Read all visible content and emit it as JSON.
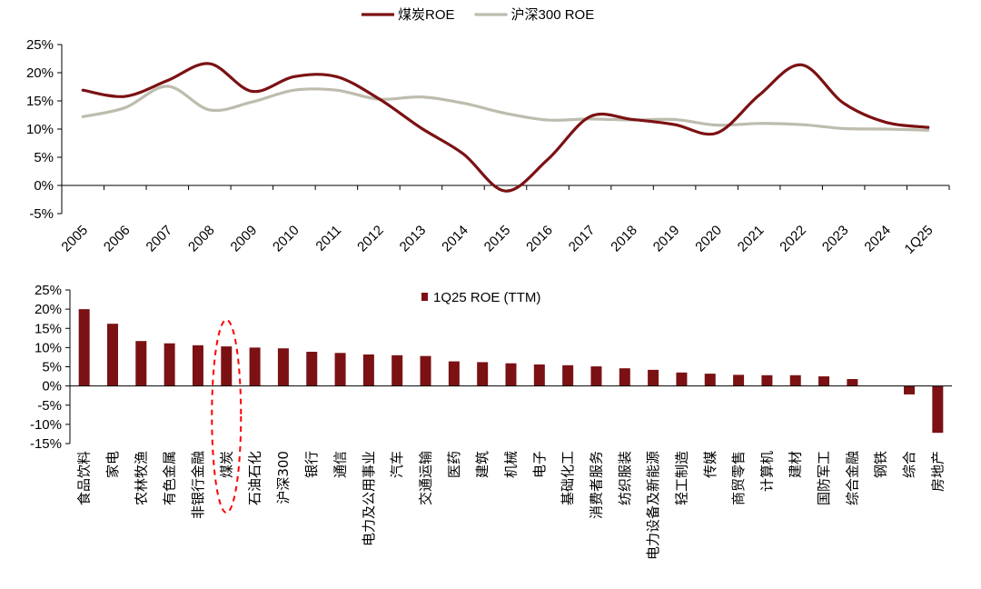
{
  "chart_data": [
    {
      "type": "line",
      "x": [
        "2005",
        "2006",
        "2007",
        "2008",
        "2009",
        "2010",
        "2011",
        "2012",
        "2013",
        "2014",
        "2015",
        "2016",
        "2017",
        "2018",
        "2019",
        "2020",
        "2021",
        "2022",
        "2023",
        "2024",
        "1Q25"
      ],
      "series": [
        {
          "name": "煤炭ROE",
          "color": "#7b1113",
          "values": [
            16.9,
            15.8,
            18.6,
            21.6,
            16.7,
            19.3,
            19.3,
            15.4,
            10.2,
            5.6,
            -1.0,
            4.6,
            12.2,
            11.7,
            10.8,
            9.3,
            16.0,
            21.4,
            14.6,
            11.2,
            10.3
          ]
        },
        {
          "name": "沪深300 ROE",
          "color": "#bdbcae",
          "values": [
            12.2,
            13.8,
            17.6,
            13.4,
            14.8,
            16.9,
            16.9,
            15.3,
            15.7,
            14.6,
            12.8,
            11.6,
            11.8,
            11.6,
            11.7,
            10.7,
            11.0,
            10.8,
            10.1,
            10.0,
            9.8
          ]
        }
      ],
      "yticks": [
        "25%",
        "20%",
        "15%",
        "10%",
        "5%",
        "0%",
        "-5%"
      ],
      "ylim": [
        -5,
        25
      ],
      "grid": false,
      "legend": "top"
    },
    {
      "type": "bar",
      "categories": [
        "食品饮料",
        "家电",
        "农林牧渔",
        "有色金属",
        "非银行金融",
        "煤炭",
        "石油石化",
        "沪深300",
        "银行",
        "通信",
        "电力及公用事业",
        "汽车",
        "交通运输",
        "医药",
        "建筑",
        "机械",
        "电子",
        "基础化工",
        "消费者服务",
        "纺织服装",
        "电力设备及新能源",
        "轻工制造",
        "传媒",
        "商贸零售",
        "计算机",
        "建材",
        "国防军工",
        "综合金融",
        "钢铁",
        "综合",
        "房地产"
      ],
      "series": [
        {
          "name": "1Q25 ROE (TTM)",
          "color": "#7b1113",
          "values": [
            20.0,
            16.2,
            11.7,
            11.1,
            10.6,
            10.3,
            10.0,
            9.8,
            8.9,
            8.6,
            8.2,
            8.0,
            7.8,
            6.4,
            6.2,
            5.9,
            5.6,
            5.4,
            5.1,
            4.6,
            4.2,
            3.5,
            3.2,
            2.9,
            2.8,
            2.8,
            2.5,
            1.8,
            0.0,
            -2.2,
            -12.2
          ]
        }
      ],
      "yticks": [
        "25%",
        "20%",
        "15%",
        "10%",
        "5%",
        "0%",
        "-5%",
        "-10%",
        "-15%"
      ],
      "ylim": [
        -15,
        25
      ],
      "grid": false,
      "legend": "top",
      "highlight_category": "煤炭"
    }
  ]
}
